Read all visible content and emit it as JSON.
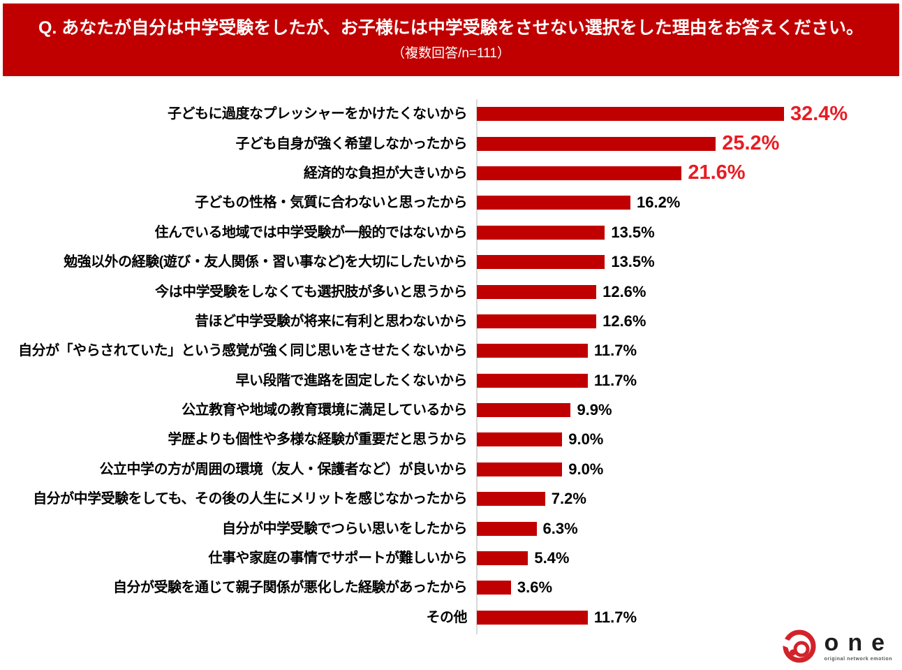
{
  "header": {
    "title": "Q. あなたが自分は中学受験をしたが、お子様には中学受験をさせない選択をした理由をお答えください。",
    "subtitle": "（複数回答/n=111）",
    "bg_color": "#c00000",
    "text_color": "#ffffff"
  },
  "chart_data": {
    "type": "bar",
    "orientation": "horizontal",
    "title": "",
    "xlabel": "",
    "ylabel": "",
    "grid": false,
    "legend": false,
    "xlim": [
      0,
      33.5
    ],
    "bar_color": "#c00000",
    "axis_line_color": "#d9d9d9",
    "value_color": "#000000",
    "highlight_value_color": "#e81c23",
    "highlight_top_n": 3,
    "categories": [
      "子どもに過度なプレッシャーをかけたくないから",
      "子ども自身が強く希望しなかったから",
      "経済的な負担が大きいから",
      "子どもの性格・気質に合わないと思ったから",
      "住んでいる地域では中学受験が一般的ではないから",
      "勉強以外の経験(遊び・友人関係・習い事など)を大切にしたいから",
      "今は中学受験をしなくても選択肢が多いと思うから",
      "昔ほど中学受験が将来に有利と思わないから",
      "自分が「やらされていた」という感覚が強く同じ思いをさせたくないから",
      "早い段階で進路を固定したくないから",
      "公立教育や地域の教育環境に満足しているから",
      "学歴よりも個性や多様な経験が重要だと思うから",
      "公立中学の方が周囲の環境（友人・保護者など）が良いから",
      "自分が中学受験をしても、その後の人生にメリットを感じなかったから",
      "自分が中学受験でつらい思いをしたから",
      "仕事や家庭の事情でサポートが難しいから",
      "自分が受験を通じて親子関係が悪化した経験があったから",
      "その他"
    ],
    "values": [
      32.4,
      25.2,
      21.6,
      16.2,
      13.5,
      13.5,
      12.6,
      12.6,
      11.7,
      11.7,
      9.9,
      9.0,
      9.0,
      7.2,
      6.3,
      5.4,
      3.6,
      11.7
    ],
    "value_labels": [
      "32.4%",
      "25.2%",
      "21.6%",
      "16.2%",
      "13.5%",
      "13.5%",
      "12.6%",
      "12.6%",
      "11.7%",
      "11.7%",
      "9.9%",
      "9.0%",
      "9.0%",
      "7.2%",
      "6.3%",
      "5.4%",
      "3.6%",
      "11.7%"
    ]
  },
  "footer": {
    "logo_text": "one",
    "logo_tagline": "original network emotion",
    "logo_color": "#d2232a"
  }
}
